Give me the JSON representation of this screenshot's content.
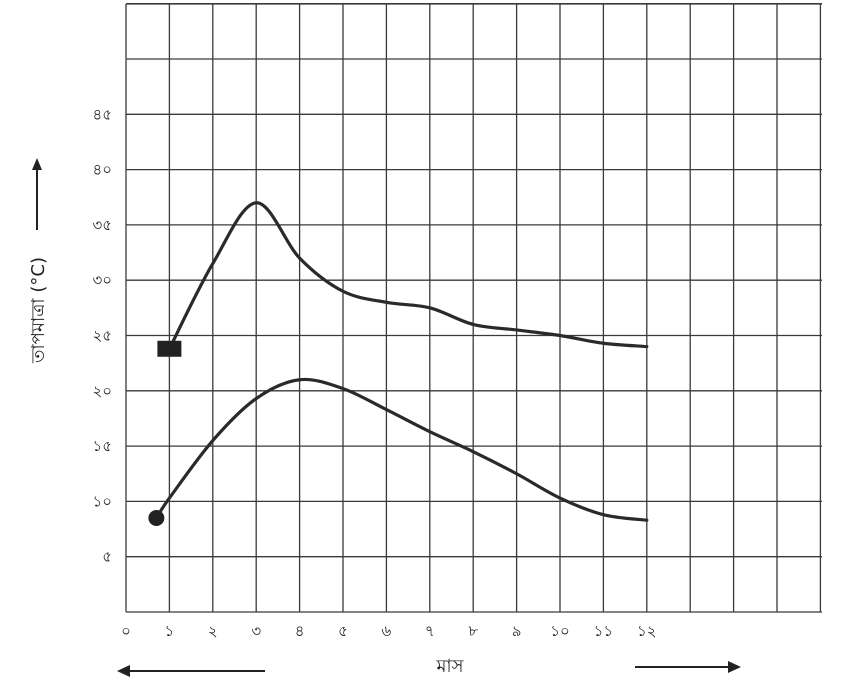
{
  "chart_data": {
    "type": "line",
    "title": "",
    "xlabel": "মাস",
    "ylabel": "তাপমাত্রা (°C)",
    "x_ticks": [
      "০",
      "১",
      "২",
      "৩",
      "৪",
      "৫",
      "৬",
      "৭",
      "৮",
      "৯",
      "১০",
      "১১",
      "১২"
    ],
    "y_ticks": [
      "৫",
      "১০",
      "১৫",
      "২০",
      "২৫",
      "৩০",
      "৩৫",
      "৪০",
      "৪৫"
    ],
    "xlim": [
      0,
      16
    ],
    "ylim": [
      0,
      55
    ],
    "grid": true,
    "series": [
      {
        "marker": "square",
        "x": [
          1,
          2,
          3,
          4,
          5,
          6,
          7,
          8,
          9,
          10,
          11,
          12
        ],
        "y": [
          23.8,
          31.5,
          37,
          32,
          29,
          28,
          27.5,
          26,
          25.5,
          25,
          24.3,
          24
        ]
      },
      {
        "marker": "circle",
        "x": [
          0.7,
          1,
          2,
          3,
          4,
          5,
          6,
          7,
          8,
          9,
          10,
          11,
          12
        ],
        "y": [
          8.5,
          10.3,
          15.5,
          19.3,
          21,
          20.2,
          18.3,
          16.3,
          14.5,
          12.5,
          10.3,
          8.8,
          8.3
        ]
      }
    ]
  }
}
